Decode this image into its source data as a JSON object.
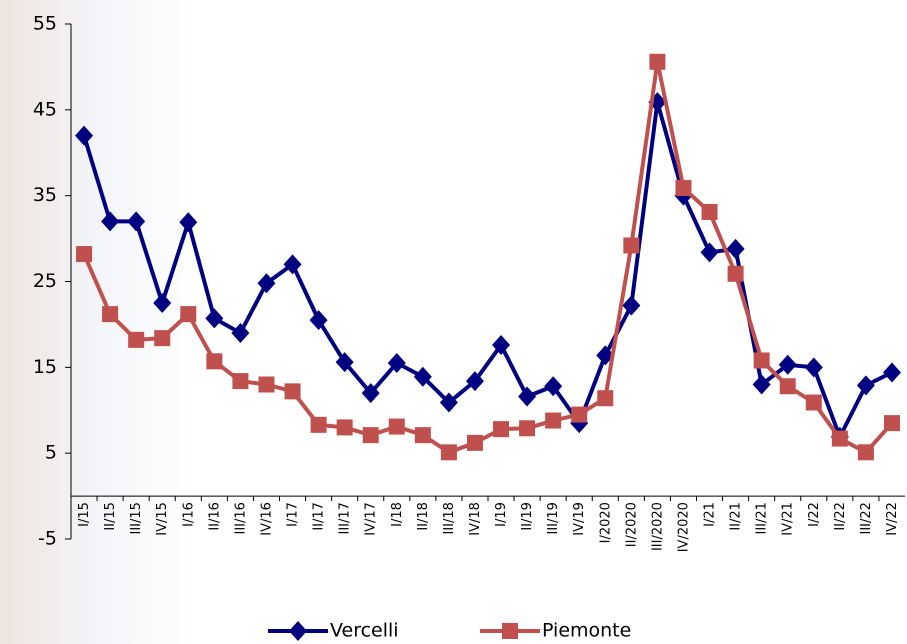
{
  "chart_data": {
    "type": "line",
    "categories": [
      "I/15",
      "II/15",
      "III/15",
      "IV/15",
      "I/16",
      "II/16",
      "III/16",
      "IV/16",
      "I/17",
      "II/17",
      "III/17",
      "IV/17",
      "I/18",
      "II/18",
      "III/18",
      "IV/18",
      "I/19",
      "II/19",
      "III/19",
      "IV/19",
      "I/2020",
      "II/2020",
      "III/2020",
      "IV/2020",
      "I/21",
      "II/21",
      "III/21",
      "IV/21",
      "I/22",
      "II/22",
      "III/22",
      "IV/22"
    ],
    "series": [
      {
        "name": "Vercelli",
        "color": "#000080",
        "marker": "diamond",
        "values": [
          42,
          32,
          32,
          22.5,
          31.9,
          20.7,
          19,
          24.8,
          27,
          20.5,
          15.6,
          12,
          15.5,
          13.9,
          10.9,
          13.4,
          17.6,
          11.6,
          12.8,
          8.5,
          16.4,
          22.2,
          45.9,
          35,
          28.4,
          28.8,
          13,
          15.3,
          15,
          6.9,
          12.9,
          14.4
        ]
      },
      {
        "name": "Piemonte",
        "color": "#c0504d",
        "marker": "square",
        "values": [
          28.2,
          21.2,
          18.2,
          18.4,
          21.2,
          15.7,
          13.4,
          13,
          12.2,
          8.3,
          8,
          7.1,
          8.1,
          7.1,
          5.1,
          6.2,
          7.8,
          7.9,
          8.8,
          9.5,
          11.4,
          29.2,
          50.6,
          35.9,
          33.1,
          25.9,
          15.8,
          12.8,
          10.9,
          6.7,
          5.1,
          8.5
        ]
      }
    ],
    "ylim": [
      -5,
      55
    ],
    "yticks": [
      -5,
      5,
      15,
      25,
      35,
      45,
      55
    ],
    "grid": false,
    "legend": "bottom"
  }
}
